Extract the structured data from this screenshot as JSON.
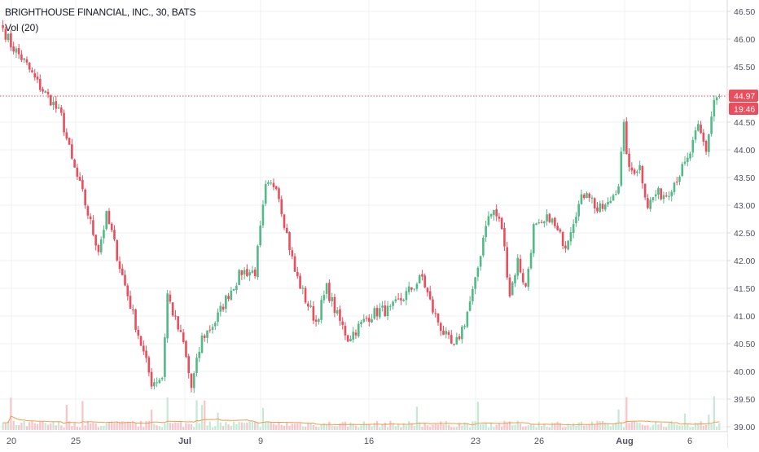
{
  "header": {
    "title": "BRIGHTHOUSE FINANCIAL, INC., 30, BATS",
    "volume_label": "Vol (20)"
  },
  "price_axis": {
    "ticks": [
      "46.50",
      "46.00",
      "45.50",
      "45.00",
      "44.50",
      "44.00",
      "43.50",
      "43.00",
      "42.50",
      "42.00",
      "41.50",
      "41.00",
      "40.50",
      "40.00",
      "39.50",
      "39.00"
    ],
    "last_price_label": "44.97",
    "countdown_label": "19:46"
  },
  "time_axis": {
    "ticks": [
      "20",
      "25",
      "Jul",
      "9",
      "16",
      "23",
      "26",
      "Aug",
      "6"
    ]
  },
  "colors": {
    "up": "#53b987",
    "down": "#eb4d5c",
    "up_volume": "#c8e8d6",
    "down_volume": "#f5c6cb",
    "volume_ma": "#f29a4a",
    "grid": "#eef0f3",
    "last_price_line": "#eb4d5c"
  },
  "chart_data": {
    "type": "candlestick",
    "title": "BRIGHTHOUSE FINANCIAL, INC., 30, BATS",
    "interval_minutes": 30,
    "ylim": [
      38.95,
      46.6
    ],
    "last_price": 44.97,
    "volume_indicator": "Vol (20)",
    "close_path": [
      [
        0,
        46.2
      ],
      [
        3,
        45.9
      ],
      [
        8,
        45.6
      ],
      [
        13,
        45.2
      ],
      [
        18,
        44.9
      ],
      [
        22,
        44.6
      ],
      [
        26,
        43.8
      ],
      [
        30,
        43.2
      ],
      [
        34,
        42.5
      ],
      [
        36,
        42.2
      ],
      [
        39,
        42.8
      ],
      [
        41,
        42.5
      ],
      [
        44,
        41.9
      ],
      [
        48,
        41.2
      ],
      [
        52,
        40.5
      ],
      [
        56,
        39.8
      ],
      [
        60,
        39.9
      ],
      [
        62,
        41.4
      ],
      [
        65,
        40.9
      ],
      [
        68,
        40.5
      ],
      [
        71,
        39.7
      ],
      [
        75,
        40.6
      ],
      [
        80,
        40.9
      ],
      [
        85,
        41.4
      ],
      [
        90,
        41.8
      ],
      [
        95,
        41.8
      ],
      [
        99,
        43.3
      ],
      [
        103,
        43.4
      ],
      [
        106,
        42.7
      ],
      [
        110,
        41.8
      ],
      [
        114,
        41.3
      ],
      [
        118,
        40.9
      ],
      [
        122,
        41.5
      ],
      [
        126,
        41.0
      ],
      [
        130,
        40.6
      ],
      [
        134,
        40.8
      ],
      [
        138,
        41.0
      ],
      [
        142,
        41.1
      ],
      [
        146,
        41.1
      ],
      [
        150,
        41.3
      ],
      [
        154,
        41.5
      ],
      [
        158,
        41.7
      ],
      [
        162,
        41.1
      ],
      [
        166,
        40.7
      ],
      [
        170,
        40.4
      ],
      [
        174,
        40.9
      ],
      [
        178,
        41.6
      ],
      [
        182,
        42.7
      ],
      [
        185,
        42.9
      ],
      [
        188,
        42.6
      ],
      [
        191,
        41.4
      ],
      [
        194,
        42.0
      ],
      [
        197,
        41.5
      ],
      [
        200,
        42.6
      ],
      [
        203,
        42.6
      ],
      [
        206,
        42.8
      ],
      [
        209,
        42.5
      ],
      [
        212,
        42.3
      ],
      [
        216,
        42.9
      ],
      [
        220,
        43.3
      ],
      [
        224,
        42.9
      ],
      [
        228,
        43.0
      ],
      [
        232,
        43.4
      ],
      [
        234,
        44.4
      ],
      [
        236,
        43.6
      ],
      [
        240,
        43.7
      ],
      [
        243,
        43.0
      ],
      [
        246,
        43.2
      ],
      [
        250,
        43.2
      ],
      [
        254,
        43.5
      ],
      [
        258,
        43.8
      ],
      [
        262,
        44.4
      ],
      [
        265,
        44.0
      ],
      [
        268,
        44.9
      ],
      [
        270,
        44.97
      ]
    ],
    "volume_baseline_bars": 270
  }
}
